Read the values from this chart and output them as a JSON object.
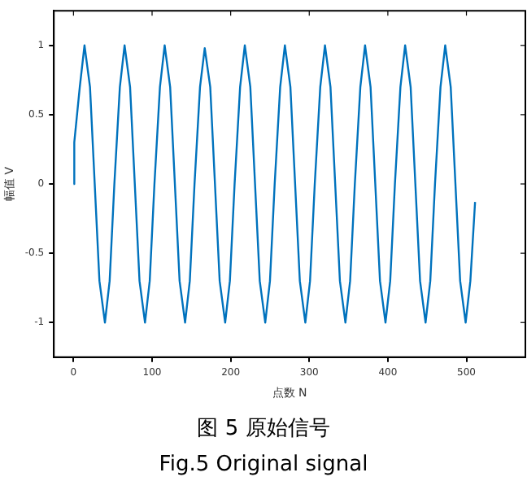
{
  "chart_data": {
    "type": "line",
    "title": "图 5 原始信号",
    "subtitle": "Fig.5 Original signal",
    "xlabel": "点数 N",
    "ylabel": "幅值 V",
    "x": [
      0,
      1,
      8,
      14,
      21,
      27,
      33,
      40,
      46,
      52,
      59,
      65,
      72,
      78,
      84,
      91,
      97,
      103,
      110,
      116,
      123,
      129,
      135,
      142,
      148,
      154,
      161,
      167,
      174,
      180,
      186,
      193,
      199,
      205,
      212,
      218,
      225,
      231,
      237,
      244,
      250,
      256,
      263,
      269,
      276,
      282,
      288,
      295,
      301,
      307,
      314,
      320,
      327,
      333,
      339,
      346,
      352,
      358,
      365,
      371,
      378,
      384,
      390,
      397,
      403,
      409,
      416,
      422,
      429,
      435,
      441,
      448,
      454,
      460,
      467,
      473,
      480,
      486,
      492,
      499,
      505,
      511
    ],
    "series": [
      {
        "color": "#0072bd",
        "values": [
          0,
          0.3,
          0.7,
          1,
          0.7,
          0,
          -0.7,
          -1,
          -0.7,
          0,
          0.7,
          1,
          0.7,
          0,
          -0.7,
          -1,
          -0.7,
          0,
          0.7,
          1,
          0.7,
          0,
          -0.7,
          -1,
          -0.7,
          0,
          0.7,
          0.98,
          0.7,
          0,
          -0.7,
          -1,
          -0.7,
          0,
          0.7,
          1,
          0.7,
          0,
          -0.7,
          -1,
          -0.7,
          0,
          0.7,
          1,
          0.7,
          0,
          -0.7,
          -1,
          -0.7,
          0,
          0.7,
          1,
          0.7,
          0,
          -0.7,
          -1,
          -0.7,
          0,
          0.7,
          1,
          0.7,
          0,
          -0.7,
          -1,
          -0.7,
          0,
          0.7,
          1,
          0.7,
          0,
          -0.7,
          -1,
          -0.7,
          0,
          0.7,
          1,
          0.7,
          0,
          -0.7,
          -1,
          -0.7,
          -0.13
        ]
      }
    ],
    "xlim": [
      -25,
      575
    ],
    "xticks": [
      0,
      100,
      200,
      300,
      400,
      500
    ],
    "ylim": [
      -1.25,
      1.25
    ],
    "yticks": [
      -1,
      -0.5,
      0,
      0.5,
      1
    ],
    "marker": "none",
    "line_style": "solid",
    "legend": false,
    "grid": false
  }
}
